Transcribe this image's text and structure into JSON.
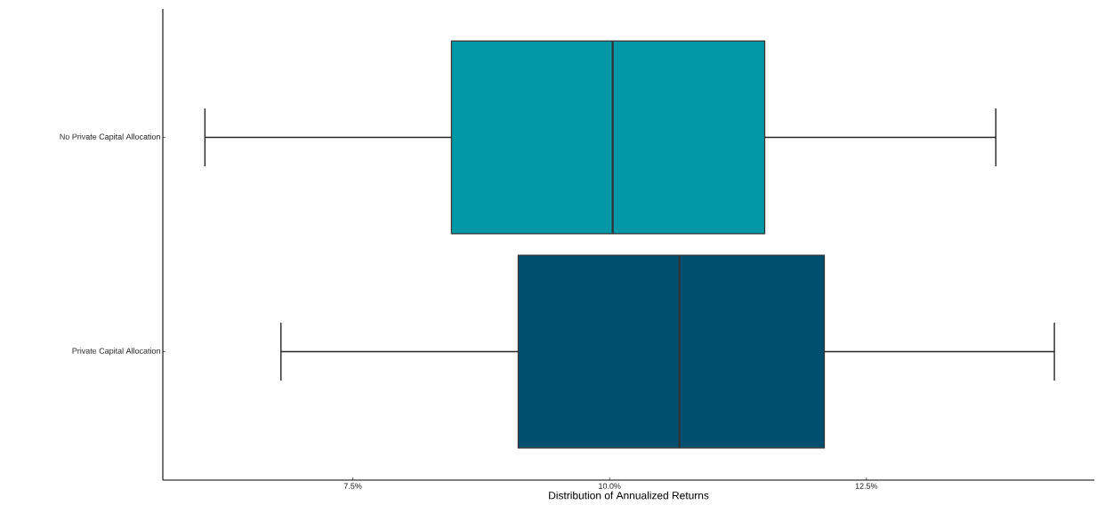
{
  "chart_data": {
    "type": "box",
    "orientation": "horizontal",
    "xlabel": "Distribution of Annualized Returns",
    "categories": [
      "No Private Capital Allocation",
      "Private Capital Allocation"
    ],
    "colors": [
      "#0097a7",
      "#004f6e"
    ],
    "boxes": [
      {
        "low": 6.06,
        "q1": 8.46,
        "median": 10.03,
        "q3": 11.51,
        "high": 13.76
      },
      {
        "low": 6.8,
        "q1": 9.11,
        "median": 10.68,
        "q3": 12.09,
        "high": 14.33
      }
    ],
    "xlim": [
      5.65,
      14.72
    ],
    "xticks": [
      {
        "value": 7.5,
        "label": "7.5%"
      },
      {
        "value": 10.0,
        "label": "10.0%"
      },
      {
        "value": 12.5,
        "label": "12.5%"
      }
    ]
  }
}
